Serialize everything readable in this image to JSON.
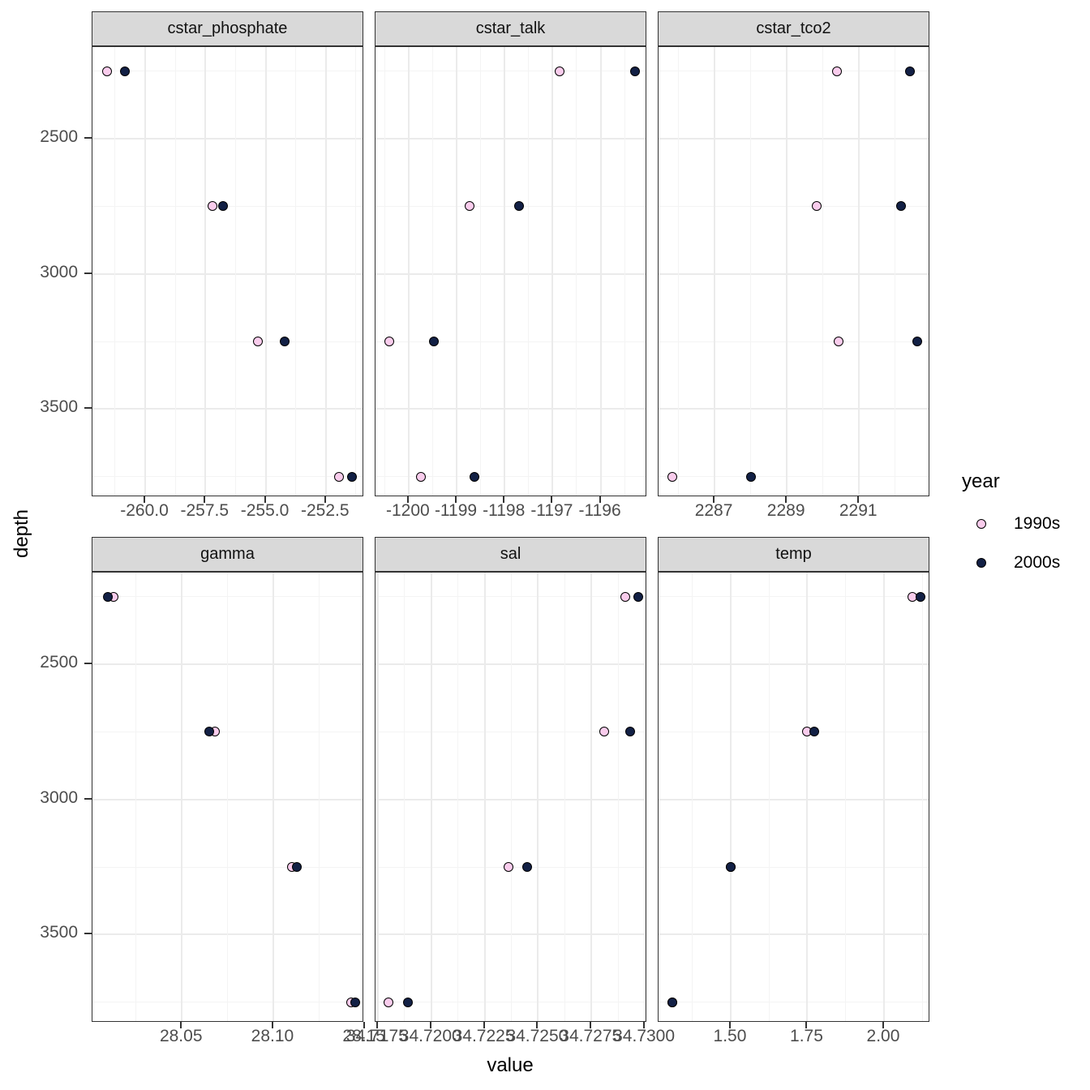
{
  "legend": {
    "title": "year",
    "items": [
      {
        "label": "1990s",
        "fill": "#f9ccec"
      },
      {
        "label": "2000s",
        "fill": "#122045"
      }
    ]
  },
  "axes": {
    "x_title": "value",
    "y_title": "depth"
  },
  "colors": {
    "series_1990s_fill": "#f9ccec",
    "series_2000s_fill": "#122045",
    "point_stroke": "#000000",
    "strip_background": "#d9d9d9",
    "panel_border": "#333333",
    "grid_major": "#ebebeb",
    "tick_text": "#4d4d4d"
  },
  "chart_data": {
    "type": "scatter",
    "title": "",
    "xlabel": "value",
    "ylabel": "depth",
    "legend_position": "right",
    "grid": "on",
    "y_axis": {
      "domain": [
        2161,
        3826
      ],
      "reversed": true,
      "ticks": [
        {
          "v": 2500,
          "label": "2500"
        },
        {
          "v": 3000,
          "label": "3000"
        },
        {
          "v": 3500,
          "label": "3500"
        }
      ],
      "minor": [
        2250,
        2750,
        3250,
        3750
      ]
    },
    "depths": [
      2250,
      2750,
      3250,
      3750
    ],
    "series_names": [
      "1990s",
      "2000s"
    ],
    "facets": [
      {
        "name": "cstar_phosphate",
        "domain": [
          -262.19,
          -250.91
        ],
        "ticks": [
          {
            "v": -260.0,
            "label": "-260.0"
          },
          {
            "v": -257.5,
            "label": "-257.5"
          },
          {
            "v": -255.0,
            "label": "-255.0"
          },
          {
            "v": -252.5,
            "label": "-252.5"
          }
        ],
        "minor": [
          -261.25,
          -258.75,
          -256.25,
          -253.75,
          -251.25
        ],
        "series": [
          {
            "name": "1990s",
            "values": [
              -261.6,
              -257.21,
              -255.33,
              -251.95
            ]
          },
          {
            "name": "2000s",
            "values": [
              -260.85,
              -256.77,
              -254.22,
              -251.41
            ]
          }
        ]
      },
      {
        "name": "cstar_talk",
        "domain": [
          -1200.69,
          -1195.03
        ],
        "ticks": [
          {
            "v": -1200,
            "label": "-1200"
          },
          {
            "v": -1199,
            "label": "-1199"
          },
          {
            "v": -1198,
            "label": "-1198"
          },
          {
            "v": -1197,
            "label": "-1197"
          },
          {
            "v": -1196,
            "label": "-1196"
          }
        ],
        "minor": [
          -1200.5,
          -1199.5,
          -1198.5,
          -1197.5,
          -1196.5,
          -1195.5
        ],
        "series": [
          {
            "name": "1990s",
            "values": [
              -1196.85,
              -1198.73,
              -1200.4,
              -1199.74
            ]
          },
          {
            "name": "2000s",
            "values": [
              -1195.29,
              -1197.7,
              -1199.47,
              -1198.63
            ]
          }
        ]
      },
      {
        "name": "cstar_tco2",
        "domain": [
          2285.45,
          2292.97
        ],
        "ticks": [
          {
            "v": 2287,
            "label": "2287"
          },
          {
            "v": 2289,
            "label": "2289"
          },
          {
            "v": 2291,
            "label": "2291"
          }
        ],
        "minor": [
          2286,
          2288,
          2290,
          2292
        ],
        "series": [
          {
            "name": "1990s",
            "values": [
              2290.38,
              2289.82,
              2290.43,
              2285.84
            ]
          },
          {
            "name": "2000s",
            "values": [
              2292.4,
              2292.17,
              2292.62,
              2288.01
            ]
          }
        ]
      },
      {
        "name": "gamma",
        "domain": [
          28.0011,
          28.1497
        ],
        "ticks": [
          {
            "v": 28.05,
            "label": "28.05"
          },
          {
            "v": 28.1,
            "label": "28.10"
          },
          {
            "v": 28.15,
            "label": "28.15"
          }
        ],
        "minor": [
          28.025,
          28.075,
          28.125
        ],
        "series": [
          {
            "name": "1990s",
            "values": [
              28.0125,
              28.068,
              28.11,
              28.1425
            ]
          },
          {
            "name": "2000s",
            "values": [
              28.0095,
              28.065,
              28.113,
              28.145
            ]
          }
        ]
      },
      {
        "name": "sal",
        "domain": [
          34.71739,
          34.73011
        ],
        "ticks": [
          {
            "v": 34.7175,
            "label": "34.7175"
          },
          {
            "v": 34.72,
            "label": "34.7200"
          },
          {
            "v": 34.7225,
            "label": "34.7225"
          },
          {
            "v": 34.725,
            "label": "34.7250"
          },
          {
            "v": 34.7275,
            "label": "34.7275"
          },
          {
            "v": 34.73,
            "label": "34.7300"
          }
        ],
        "minor": [
          34.71875,
          34.72125,
          34.72375,
          34.72625,
          34.72875
        ],
        "series": [
          {
            "name": "1990s",
            "values": [
              34.7291,
              34.7281,
              34.7236,
              34.718
            ]
          },
          {
            "name": "2000s",
            "values": [
              34.7297,
              34.7293,
              34.7245,
              34.7189
            ]
          }
        ]
      },
      {
        "name": "temp",
        "domain": [
          1.2646,
          2.1508
        ],
        "ticks": [
          {
            "v": 1.5,
            "label": "1.50"
          },
          {
            "v": 1.75,
            "label": "1.75"
          },
          {
            "v": 2.0,
            "label": "2.00"
          }
        ],
        "minor": [
          1.375,
          1.625,
          1.875,
          2.125
        ],
        "series": [
          {
            "name": "1990s",
            "values": [
              2.093,
              1.749,
              1.5,
              1.309
            ]
          },
          {
            "name": "2000s",
            "values": [
              2.119,
              1.773,
              1.5,
              1.309
            ]
          }
        ]
      }
    ]
  }
}
